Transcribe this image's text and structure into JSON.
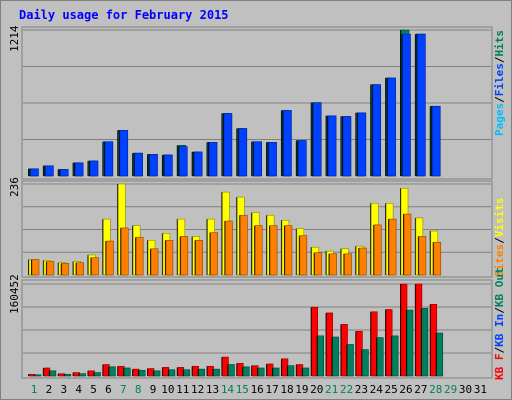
{
  "chart_data": [
    {
      "type": "bar",
      "title": "Daily usage for February 2015",
      "panel": "hits-files-pages",
      "ymax_label": "1214",
      "ylim": [
        0,
        1214
      ],
      "legend": {
        "placement": "right",
        "labels": [
          "Pages",
          "/",
          "Files",
          "/",
          "Hits"
        ]
      },
      "grid": true,
      "categories": [
        "1",
        "2",
        "3",
        "4",
        "5",
        "6",
        "7",
        "8",
        "9",
        "10",
        "11",
        "12",
        "13",
        "14",
        "15",
        "16",
        "17",
        "18",
        "19",
        "20",
        "21",
        "22",
        "23",
        "24",
        "25",
        "26",
        "27",
        "28",
        "29",
        "30",
        "31"
      ],
      "series": [
        {
          "name": "Hits",
          "values": [
            60,
            85,
            55,
            110,
            125,
            285,
            380,
            190,
            180,
            175,
            255,
            200,
            280,
            520,
            395,
            285,
            280,
            545,
            295,
            610,
            500,
            495,
            525,
            760,
            815,
            1214,
            1180,
            580,
            0,
            0,
            0
          ]
        },
        {
          "name": "Files",
          "values": [
            60,
            85,
            55,
            110,
            125,
            285,
            380,
            190,
            180,
            175,
            245,
            200,
            280,
            520,
            395,
            285,
            280,
            545,
            295,
            610,
            500,
            495,
            525,
            760,
            815,
            1180,
            1180,
            580,
            0,
            0,
            0
          ]
        },
        {
          "name": "Pages",
          "values": [
            0,
            0,
            0,
            0,
            0,
            0,
            0,
            0,
            0,
            0,
            0,
            0,
            0,
            0,
            0,
            0,
            0,
            0,
            0,
            0,
            0,
            0,
            0,
            0,
            0,
            0,
            0,
            0,
            0,
            0,
            0
          ]
        }
      ]
    },
    {
      "type": "bar",
      "panel": "visits-sites",
      "ymax_label": "236",
      "ylim": [
        0,
        236
      ],
      "legend": {
        "placement": "right",
        "labels": [
          "Visits",
          "/",
          "Sites"
        ]
      },
      "grid": true,
      "series": [
        {
          "name": "Visits",
          "values": [
            40,
            38,
            32,
            35,
            52,
            145,
            236,
            128,
            90,
            108,
            145,
            100,
            145,
            215,
            202,
            162,
            155,
            142,
            120,
            72,
            62,
            68,
            75,
            186,
            186,
            225,
            148,
            114,
            0,
            0,
            0
          ]
        },
        {
          "name": "Sites",
          "values": [
            40,
            35,
            30,
            32,
            45,
            88,
            122,
            98,
            68,
            90,
            100,
            90,
            110,
            140,
            155,
            128,
            128,
            128,
            102,
            58,
            55,
            55,
            70,
            130,
            145,
            158,
            100,
            85,
            0,
            0,
            0
          ]
        }
      ]
    },
    {
      "type": "bar",
      "panel": "kbytes",
      "ymax_label": "160452",
      "ylim": [
        0,
        160452
      ],
      "legend": {
        "placement": "right",
        "labels": [
          "KB F",
          "/",
          "KB In",
          "/",
          "KB Out"
        ]
      },
      "grid": true,
      "series": [
        {
          "name": "KB F",
          "values": [
            3000,
            14000,
            4000,
            6000,
            9000,
            20000,
            17000,
            12000,
            13000,
            15000,
            15000,
            17000,
            17000,
            33000,
            22000,
            18000,
            21000,
            30000,
            20000,
            120000,
            110000,
            90000,
            78000,
            112000,
            116000,
            160452,
            160452,
            125000,
            0,
            0,
            0
          ]
        },
        {
          "name": "KB In",
          "values": [
            0,
            0,
            0,
            0,
            0,
            0,
            0,
            0,
            0,
            0,
            0,
            0,
            0,
            0,
            0,
            0,
            0,
            0,
            0,
            0,
            0,
            0,
            0,
            0,
            0,
            0,
            0,
            0,
            0,
            0,
            0
          ]
        },
        {
          "name": "KB Out",
          "values": [
            2000,
            9000,
            3000,
            4000,
            6000,
            16000,
            14000,
            10000,
            9000,
            11000,
            11000,
            12000,
            12000,
            20000,
            16000,
            14000,
            14000,
            18000,
            14000,
            70000,
            68000,
            55000,
            46000,
            67000,
            70000,
            115000,
            118000,
            75000,
            0,
            0,
            0
          ]
        }
      ]
    }
  ],
  "colors": {
    "frame_bg": "#c0c0c0",
    "plot_bg": "#c0c0c0",
    "title": "#0000ff",
    "hits": "#00805c",
    "files": "#0040ff",
    "pages": "#00c0ff",
    "visits": "#ffff00",
    "sites": "#ff8000",
    "kbf": "#ff0000",
    "kbin": "#0040ff",
    "kbout": "#00805c",
    "weekend": "#00805c",
    "weekday": "#000000"
  },
  "weekend_days": [
    "1",
    "7",
    "8",
    "14",
    "15",
    "21",
    "22",
    "28",
    "29"
  ]
}
